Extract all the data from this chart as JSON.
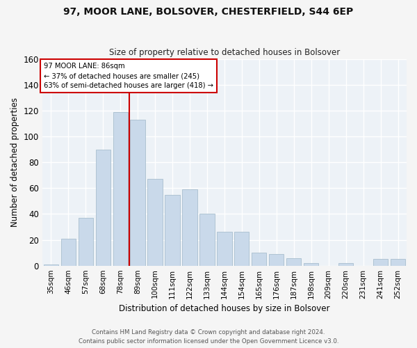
{
  "title": "97, MOOR LANE, BOLSOVER, CHESTERFIELD, S44 6EP",
  "subtitle": "Size of property relative to detached houses in Bolsover",
  "xlabel": "Distribution of detached houses by size in Bolsover",
  "ylabel": "Number of detached properties",
  "bar_labels": [
    "35sqm",
    "46sqm",
    "57sqm",
    "68sqm",
    "78sqm",
    "89sqm",
    "100sqm",
    "111sqm",
    "122sqm",
    "133sqm",
    "144sqm",
    "154sqm",
    "165sqm",
    "176sqm",
    "187sqm",
    "198sqm",
    "209sqm",
    "220sqm",
    "231sqm",
    "241sqm",
    "252sqm"
  ],
  "bar_values": [
    1,
    21,
    37,
    90,
    119,
    113,
    67,
    55,
    59,
    40,
    26,
    26,
    10,
    9,
    6,
    2,
    0,
    2,
    0,
    5,
    5
  ],
  "bar_color": "#c9d9ea",
  "bar_edge_color": "#a8bece",
  "vline_x": 4.5,
  "vline_color": "#cc0000",
  "annotation_title": "97 MOOR LANE: 86sqm",
  "annotation_line1": "← 37% of detached houses are smaller (245)",
  "annotation_line2": "63% of semi-detached houses are larger (418) →",
  "box_edge_color": "#cc0000",
  "ylim": [
    0,
    160
  ],
  "yticks": [
    0,
    20,
    40,
    60,
    80,
    100,
    120,
    140,
    160
  ],
  "footer1": "Contains HM Land Registry data © Crown copyright and database right 2024.",
  "footer2": "Contains public sector information licensed under the Open Government Licence v3.0.",
  "bg_color": "#edf2f7",
  "grid_color": "#ffffff",
  "fig_bg": "#f5f5f5"
}
